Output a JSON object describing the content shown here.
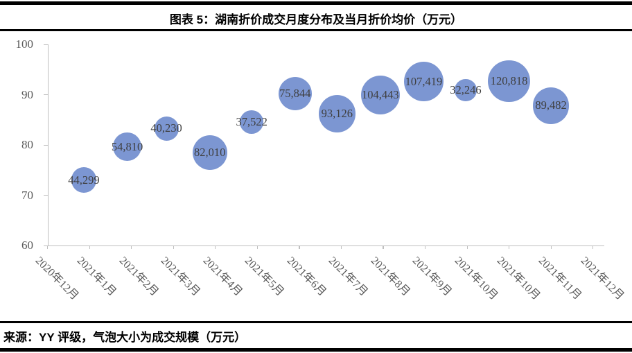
{
  "header": {
    "title": "图表 5：湖南折价成交月度分布及当月折价均价（万元）"
  },
  "footer": {
    "source_note": "来源：YY 评级，气泡大小为成交规模（万元）"
  },
  "colors": {
    "bubble_fill": "#7C96D2",
    "axis_line": "#BFBFBF",
    "axis_text": "#595959",
    "data_label_text": "#3F3F3F",
    "border_rule": "#000000"
  },
  "chart_data": {
    "type": "scatter",
    "subtype": "bubble",
    "title": "湖南折价成交月度分布及当月折价均价（万元）",
    "xlabel": "",
    "ylabel": "",
    "ylim": [
      60,
      100
    ],
    "grid": false,
    "legend_position": "none",
    "y_ticks": [
      100,
      90,
      80,
      70,
      60
    ],
    "x_tick_labels": [
      "2020年12月",
      "2021年1月",
      "2021年2月",
      "2021年3月",
      "2021年4月",
      "2021年5月",
      "2021年6月",
      "2021年7月",
      "2021年8月",
      "2021年9月",
      "2021年10月",
      "2021年10月",
      "2021年11月",
      "2021年12月"
    ],
    "x_axis": {
      "type": "date",
      "min": "2020-12-05",
      "major_unit_days": 30
    },
    "bubble_size_meaning": "气泡大小为成交规模（万元）",
    "points": [
      {
        "month": "2020年12月",
        "x_date": "2020-12-31",
        "avg_price": 73.0,
        "volume": 44299,
        "volume_label": "44,299"
      },
      {
        "month": "2021年1月",
        "x_date": "2021-01-31",
        "avg_price": 79.6,
        "volume": 54810,
        "volume_label": "54,810"
      },
      {
        "month": "2021年2月",
        "x_date": "2021-02-28",
        "avg_price": 83.3,
        "volume": 40230,
        "volume_label": "40,230"
      },
      {
        "month": "2021年3月",
        "x_date": "2021-03-31",
        "avg_price": 78.5,
        "volume": 82010,
        "volume_label": "82,010"
      },
      {
        "month": "2021年4月",
        "x_date": "2021-04-30",
        "avg_price": 84.6,
        "volume": 37522,
        "volume_label": "37,522"
      },
      {
        "month": "2021年5月",
        "x_date": "2021-05-31",
        "avg_price": 90.2,
        "volume": 75844,
        "volume_label": "75,844"
      },
      {
        "month": "2021年6月",
        "x_date": "2021-06-30",
        "avg_price": 86.2,
        "volume": 93126,
        "volume_label": "93,126"
      },
      {
        "month": "2021年7月",
        "x_date": "2021-07-31",
        "avg_price": 89.9,
        "volume": 104443,
        "volume_label": "104,443"
      },
      {
        "month": "2021年8月",
        "x_date": "2021-08-31",
        "avg_price": 92.6,
        "volume": 107419,
        "volume_label": "107,419"
      },
      {
        "month": "2021年9月",
        "x_date": "2021-09-30",
        "avg_price": 90.9,
        "volume": 32246,
        "volume_label": "32,246"
      },
      {
        "month": "2021年10月",
        "x_date": "2021-10-31",
        "avg_price": 92.7,
        "volume": 120818,
        "volume_label": "120,818"
      },
      {
        "month": "2021年11月",
        "x_date": "2021-11-30",
        "avg_price": 87.8,
        "volume": 89482,
        "volume_label": "89,482"
      }
    ]
  }
}
